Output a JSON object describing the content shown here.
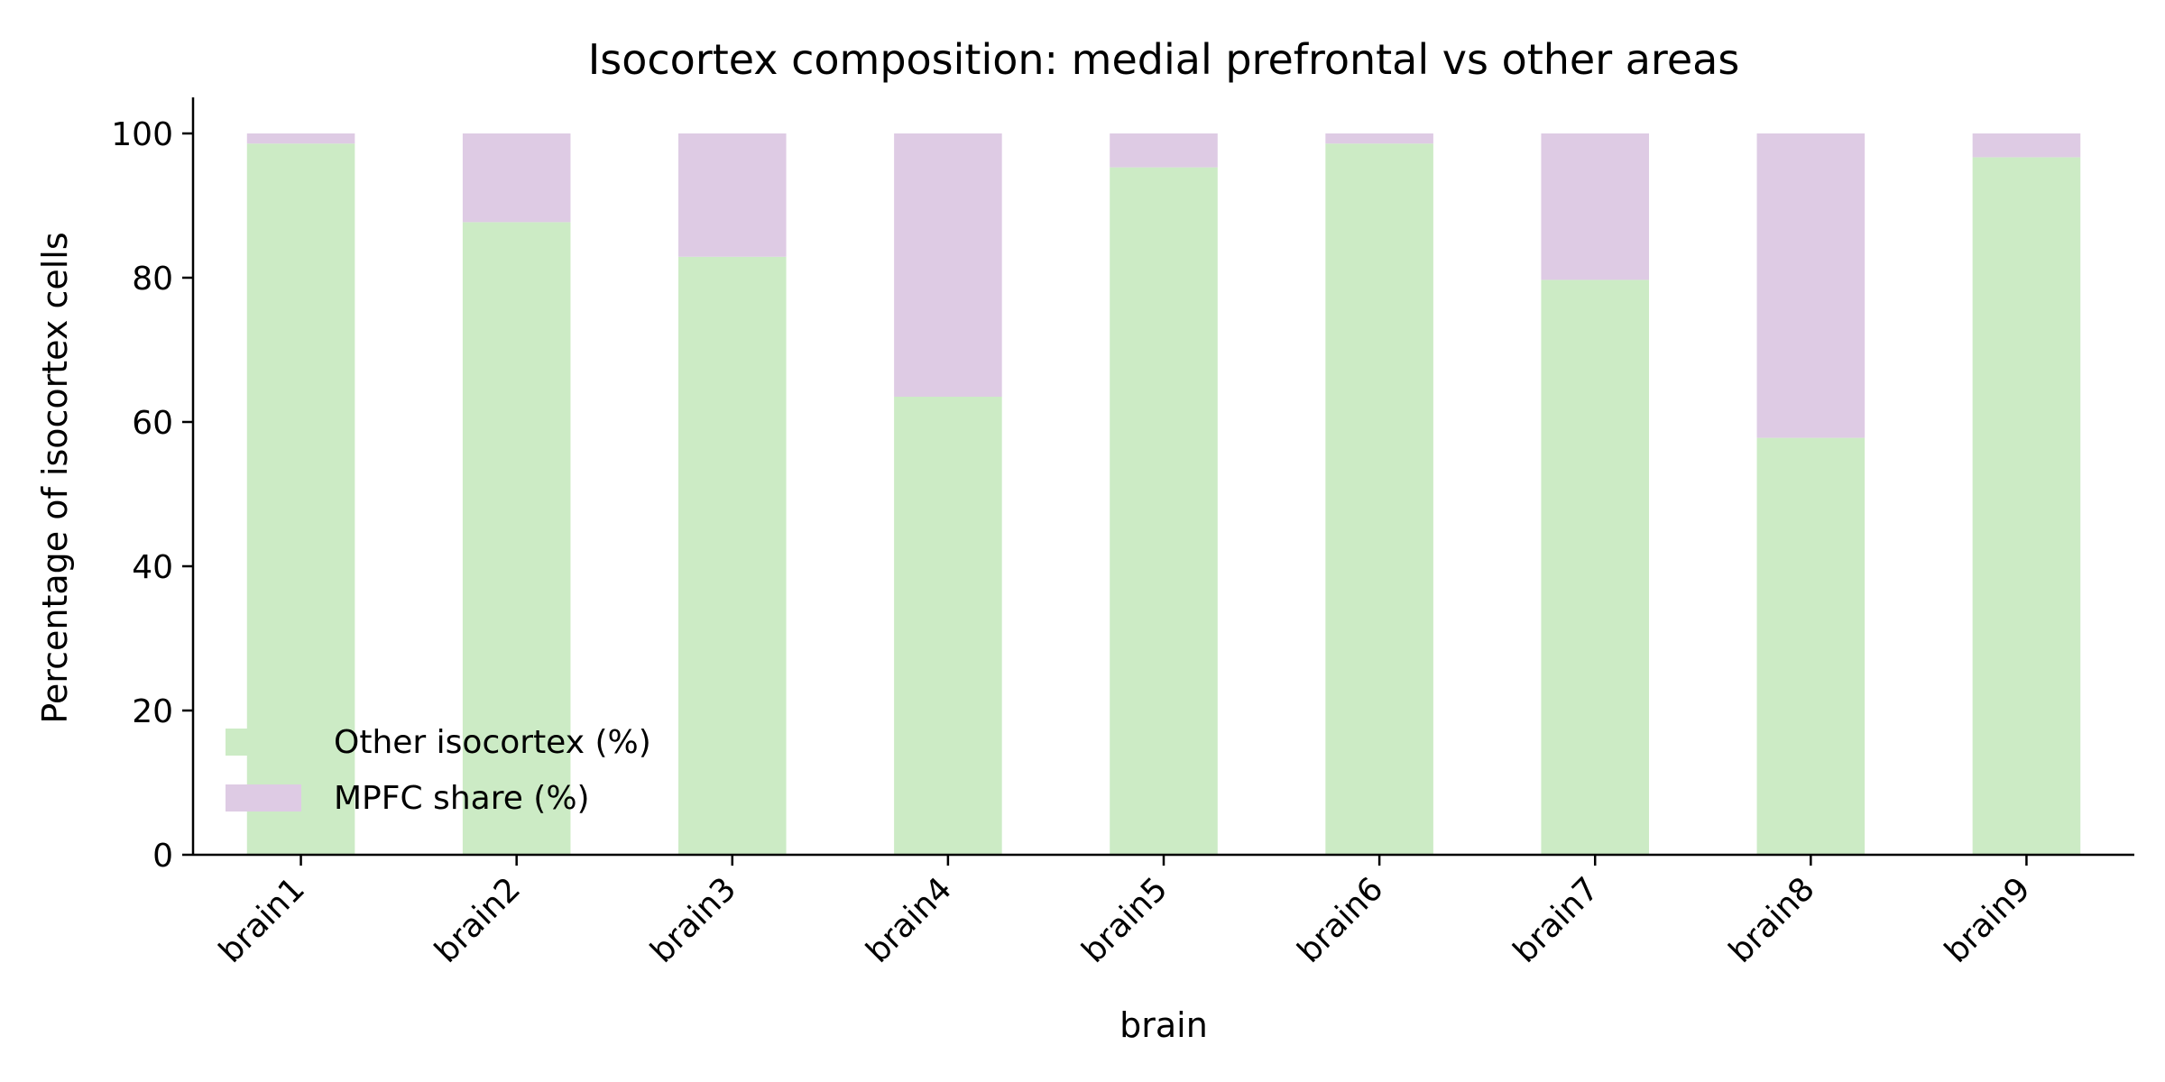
{
  "chart_data": {
    "type": "bar",
    "stacked": true,
    "title": "Isocortex composition: medial prefrontal vs other areas",
    "xlabel": "brain",
    "ylabel": "Percentage of isocortex cells",
    "categories": [
      "brain1",
      "brain2",
      "brain3",
      "brain4",
      "brain5",
      "brain6",
      "brain7",
      "brain8",
      "brain9"
    ],
    "series": [
      {
        "name": "Other isocortex (%)",
        "color": "#ccebc5",
        "values": [
          98.6,
          87.7,
          82.9,
          63.5,
          95.3,
          98.6,
          79.7,
          57.8,
          96.7
        ]
      },
      {
        "name": "MPFC share (%)",
        "color": "#decbe4",
        "values": [
          1.4,
          12.3,
          17.1,
          36.5,
          4.7,
          1.4,
          20.3,
          42.2,
          3.3
        ]
      }
    ],
    "ylim": [
      0,
      105
    ],
    "yticks": [
      "0",
      "20",
      "40",
      "60",
      "80",
      "100"
    ],
    "grid": false,
    "legend_position": "lower-left"
  }
}
